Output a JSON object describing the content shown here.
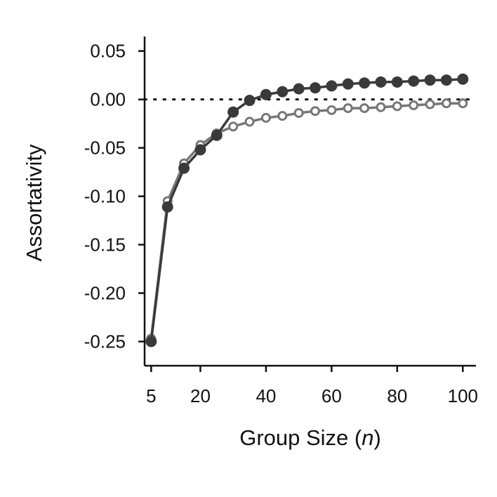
{
  "chart_data": {
    "type": "line",
    "title": "",
    "xlabel": "Group Size (n)",
    "xlabel_parts": {
      "prefix": "Group Size (",
      "var": "n",
      "suffix": ")"
    },
    "ylabel": "Assortativity",
    "xlim": [
      3,
      104
    ],
    "ylim": [
      -0.275,
      0.065
    ],
    "x_ticks": [
      5,
      20,
      40,
      60,
      80,
      100
    ],
    "x_tick_labels": [
      "5",
      "20",
      "40",
      "60",
      "80",
      "100"
    ],
    "y_ticks": [
      0.05,
      0.0,
      -0.05,
      -0.1,
      -0.15,
      -0.2,
      -0.25
    ],
    "y_tick_labels": [
      "0.05",
      "0.00",
      "-0.05",
      "-0.10",
      "-0.15",
      "-0.20",
      "-0.25"
    ],
    "reference_line": {
      "y": 0.0,
      "style": "dotted"
    },
    "grid": false,
    "legend": "none",
    "x": [
      5,
      10,
      15,
      20,
      25,
      30,
      35,
      40,
      45,
      50,
      55,
      60,
      65,
      70,
      75,
      80,
      85,
      90,
      95,
      100
    ],
    "series": [
      {
        "marker": "hollow-circle",
        "color": "#777777",
        "values": [
          -0.247,
          -0.105,
          -0.066,
          -0.047,
          -0.035,
          -0.028,
          -0.023,
          -0.019,
          -0.017,
          -0.014,
          -0.012,
          -0.011,
          -0.009,
          -0.009,
          -0.008,
          -0.007,
          -0.006,
          -0.005,
          -0.004,
          -0.004
        ]
      },
      {
        "marker": "filled-circle",
        "color": "#3a3a3a",
        "values": [
          -0.25,
          -0.111,
          -0.071,
          -0.052,
          -0.037,
          -0.013,
          -0.001,
          0.005,
          0.008,
          0.011,
          0.012,
          0.014,
          0.016,
          0.017,
          0.018,
          0.018,
          0.019,
          0.02,
          0.02,
          0.021
        ]
      }
    ]
  }
}
